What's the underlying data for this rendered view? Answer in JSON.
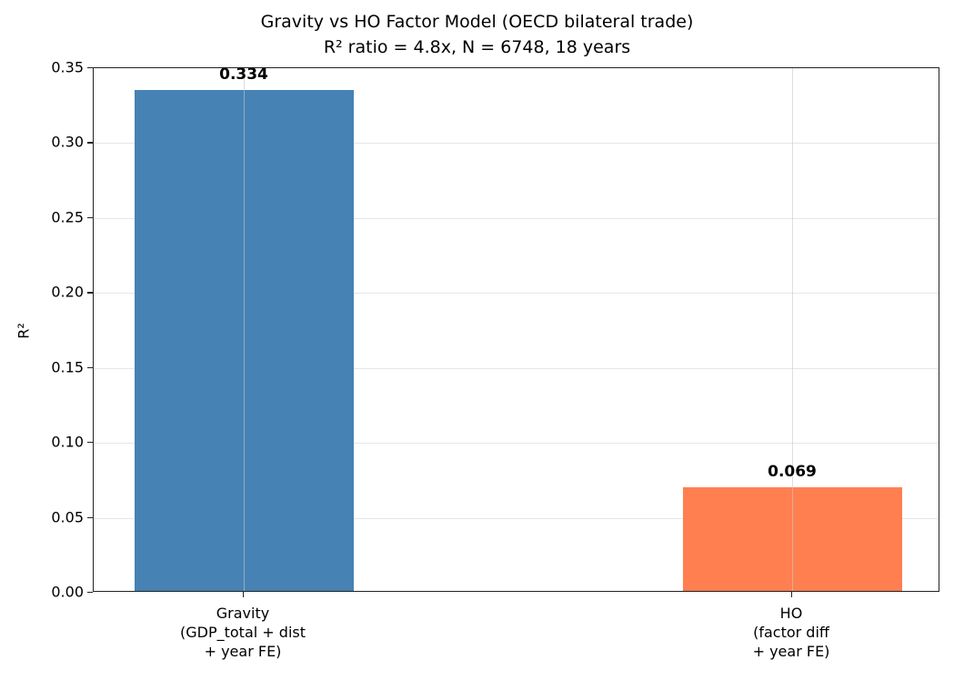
{
  "chart_data": {
    "type": "bar",
    "title": "Gravity vs HO Factor Model (OECD bilateral trade)",
    "subtitle": "R² ratio = 4.8x, N = 6748, 18 years",
    "categories": [
      "Gravity\n(GDP_total + dist\n+ year FE)",
      "HO\n(factor diff\n+ year FE)"
    ],
    "values": [
      0.334,
      0.069
    ],
    "value_labels": [
      "0.334",
      "0.069"
    ],
    "colors": [
      "#4682b4",
      "#ff7f50"
    ],
    "xlabel": "",
    "ylabel": "R²",
    "ylim": [
      0,
      0.35
    ],
    "yticks": [
      "0.00",
      "0.05",
      "0.10",
      "0.15",
      "0.20",
      "0.25",
      "0.30",
      "0.35"
    ],
    "grid": true,
    "legend": null
  }
}
